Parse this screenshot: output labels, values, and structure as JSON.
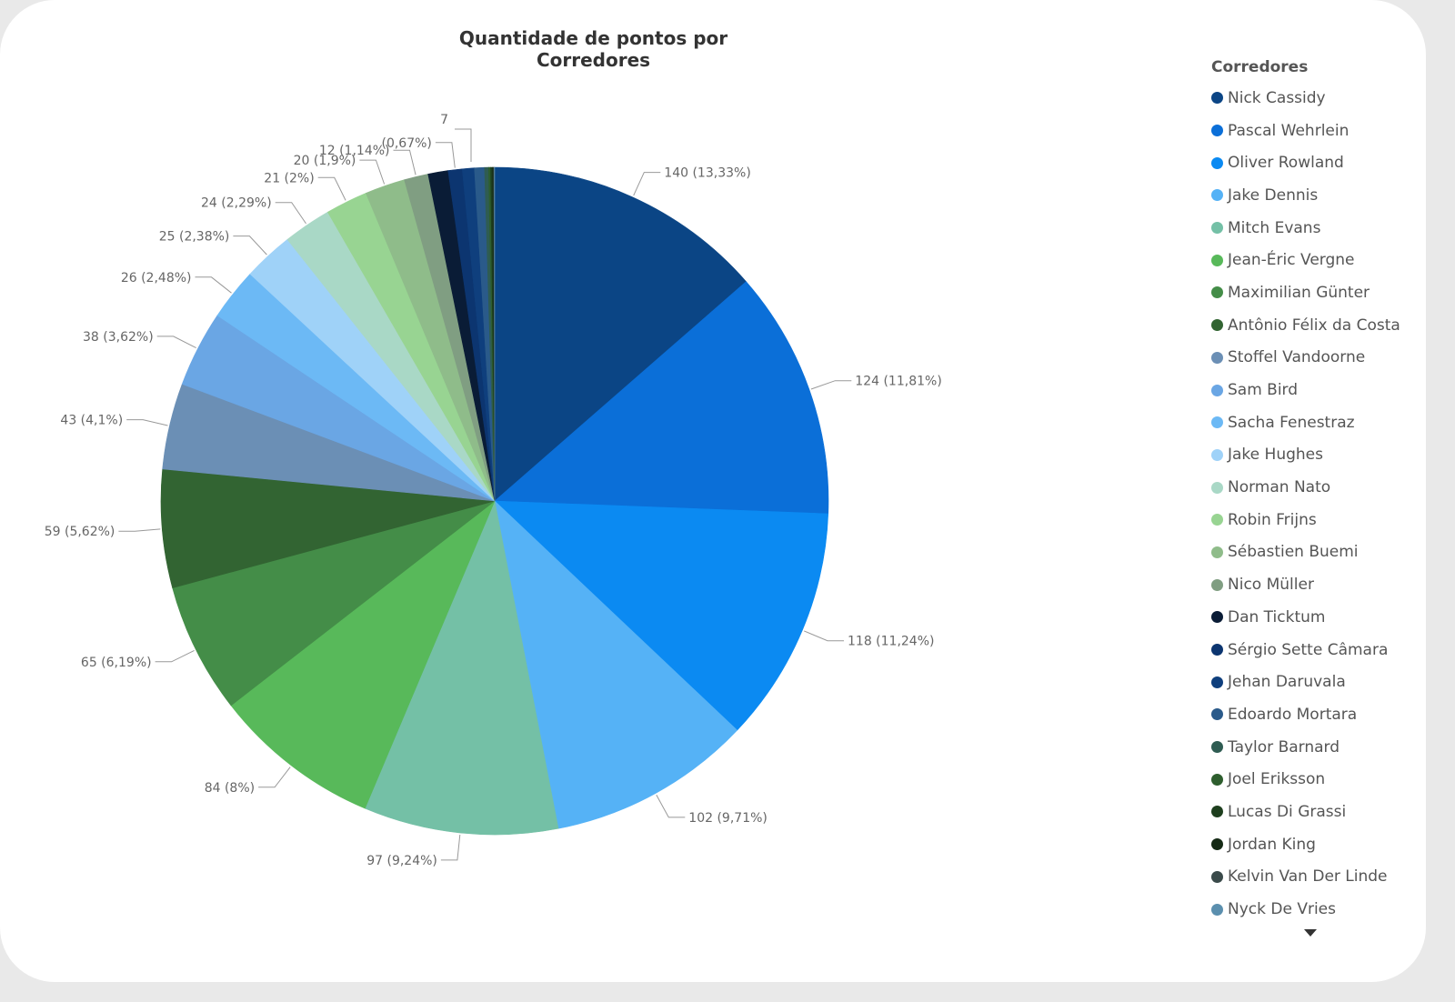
{
  "chart_data": {
    "type": "pie",
    "title": "Quantidade de pontos por Corredores",
    "legend_title": "Corredores",
    "legend_position": "right",
    "slices": [
      {
        "name": "Nick Cassidy",
        "value": 140,
        "label": "140 (13,33%)",
        "color": "#0b4585"
      },
      {
        "name": "Pascal Wehrlein",
        "value": 124,
        "label": "124 (11,81%)",
        "color": "#0b6fd8"
      },
      {
        "name": "Oliver Rowland",
        "value": 118,
        "label": "118 (11,24%)",
        "color": "#0b8af2"
      },
      {
        "name": "Jake Dennis",
        "value": 102,
        "label": "102 (9,71%)",
        "color": "#55b2f6"
      },
      {
        "name": "Mitch Evans",
        "value": 97,
        "label": "97 (9,24%)",
        "color": "#74c0a6"
      },
      {
        "name": "Jean-Éric Vergne",
        "value": 84,
        "label": "84 (8%)",
        "color": "#58b95a"
      },
      {
        "name": "Maximilian Günter",
        "value": 65,
        "label": "65 (6,19%)",
        "color": "#448d48"
      },
      {
        "name": "Antônio Félix da Costa",
        "value": 59,
        "label": "59 (5,62%)",
        "color": "#326432"
      },
      {
        "name": "Stoffel Vandoorne",
        "value": 43,
        "label": "43 (4,1%)",
        "color": "#6b8fb5"
      },
      {
        "name": "Sam Bird",
        "value": 38,
        "label": "38 (3,62%)",
        "color": "#6aa6e4"
      },
      {
        "name": "Sacha Fenestraz",
        "value": 26,
        "label": "26 (2,48%)",
        "color": "#6cb9f5"
      },
      {
        "name": "Jake Hughes",
        "value": 25,
        "label": "25 (2,38%)",
        "color": "#9fd2f8"
      },
      {
        "name": "Norman Nato",
        "value": 24,
        "label": "24 (2,29%)",
        "color": "#a9d8c6"
      },
      {
        "name": "Robin Frijns",
        "value": 21,
        "label": "21 (2%)",
        "color": "#98d492"
      },
      {
        "name": "Sébastien Buemi",
        "value": 20,
        "label": "20 (1,9%)",
        "color": "#8fbc8a"
      },
      {
        "name": "Nico Müller",
        "value": 12,
        "label": "12 (1,14%)",
        "color": "#809e82"
      },
      {
        "name": "Dan Ticktum",
        "value": 10,
        "label": "",
        "color": "#0a1c36"
      },
      {
        "name": "Sérgio Sette Câmara",
        "value": 7,
        "label": "(0,67%)",
        "color": "#0c3570"
      },
      {
        "name": "Jehan Daruvala",
        "value": 6,
        "label": "",
        "color": "#0f3f7d"
      },
      {
        "name": "Edoardo Mortara",
        "value": 5,
        "label": "",
        "color": "#2a5a8a"
      },
      {
        "name": "Taylor Barnard",
        "value": 2,
        "label": "",
        "color": "#2f5c52"
      },
      {
        "name": "Joel Eriksson",
        "value": 1,
        "label": "",
        "color": "#2e5e2e"
      },
      {
        "name": "Lucas Di Grassi",
        "value": 1,
        "label": "",
        "color": "#1e3f1e"
      },
      {
        "name": "Jordan King",
        "value": 0.5,
        "label": "",
        "color": "#152a15"
      },
      {
        "name": "Kelvin Van Der Linde",
        "value": 0.3,
        "label": "",
        "color": "#3a4a4a"
      },
      {
        "name": "Nyck De Vries",
        "value": 0.2,
        "label": "",
        "color": "#5b8fae"
      }
    ],
    "extra_label": "7"
  }
}
